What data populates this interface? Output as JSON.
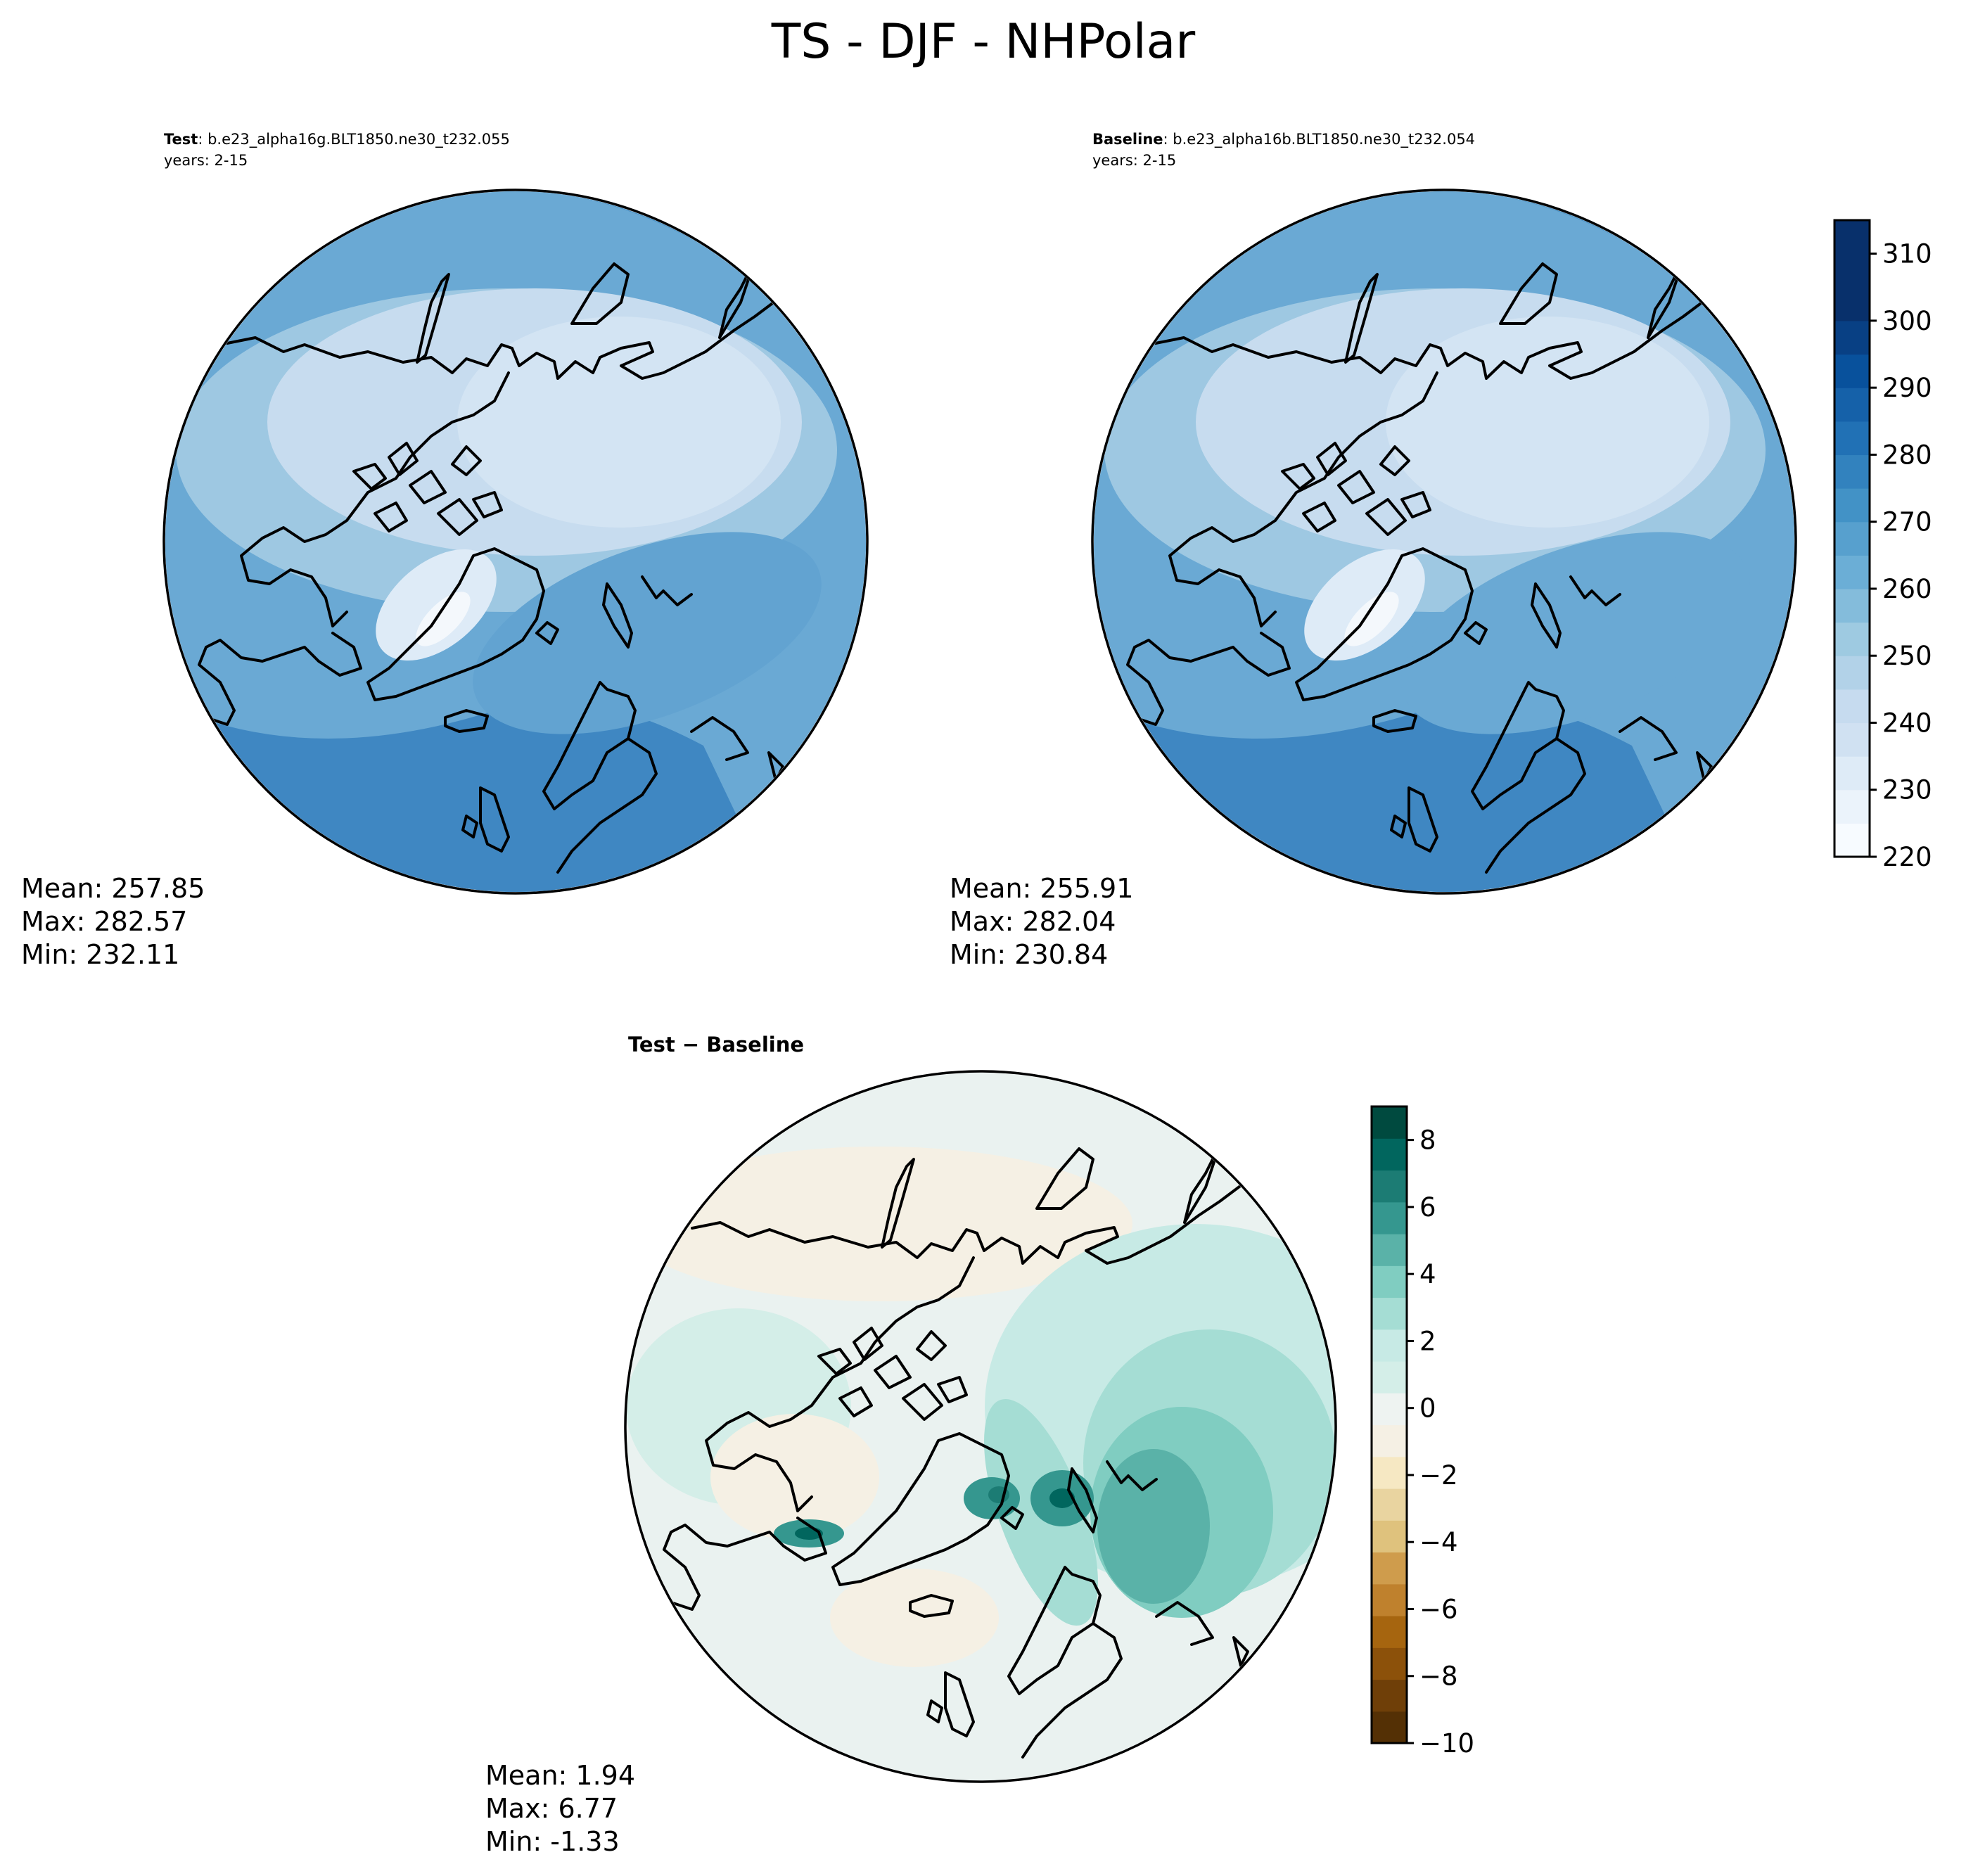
{
  "figure": {
    "title": "TS - DJF - NHPolar"
  },
  "panels": {
    "test": {
      "label_bold": "Test",
      "label_rest": ": b.e23_alpha16g.BLT1850.ne30_t232.055",
      "years": "years: 2-15",
      "stats": {
        "mean": "Mean: 257.85",
        "max": "Max: 282.57",
        "min": "Min: 232.11"
      }
    },
    "baseline": {
      "label_bold": "Baseline",
      "label_rest": ": b.e23_alpha16b.BLT1850.ne30_t232.054",
      "years": "years: 2-15",
      "stats": {
        "mean": "Mean: 255.91",
        "max": "Max: 282.04",
        "min": "Min: 230.84"
      }
    },
    "diff": {
      "label": "Test − Baseline",
      "stats": {
        "mean": "Mean:  1.94",
        "max": "Max:  6.77",
        "min": "Min: -1.33"
      }
    }
  },
  "colorbars": {
    "absolute": {
      "ticks": [
        "310",
        "300",
        "290",
        "280",
        "270",
        "260",
        "250",
        "240",
        "230",
        "220"
      ],
      "min": 220,
      "max": 315,
      "step": 5,
      "colormap": "Blues",
      "colors": [
        "#f7fbff",
        "#ebf3fb",
        "#deebf7",
        "#d0e1f2",
        "#c6dbef",
        "#b2d2e8",
        "#9ecae1",
        "#84bcdb",
        "#6baed6",
        "#57a0ce",
        "#4292c6",
        "#3282be",
        "#2171b5",
        "#1561a9",
        "#08519c",
        "#084084",
        "#08306b",
        "#08306b",
        "#08306b"
      ]
    },
    "difference": {
      "ticks": [
        "8",
        "6",
        "4",
        "2",
        "0",
        "−2",
        "−4",
        "−6",
        "−8",
        "−10"
      ],
      "min": -10,
      "max": 9,
      "step": 1,
      "colormap": "BrBG",
      "colors": [
        "#543005",
        "#6f3f08",
        "#8c510a",
        "#a6650f",
        "#bf812d",
        "#cf9c4c",
        "#dfc27d",
        "#e9d4a0",
        "#f6e8c3",
        "#f5f0e4",
        "#eef3f1",
        "#d4eee8",
        "#c7eae5",
        "#a5ddd4",
        "#80cdc1",
        "#5ab2a8",
        "#35978f",
        "#1c7c74",
        "#01665e",
        "#004a3f"
      ]
    }
  }
}
